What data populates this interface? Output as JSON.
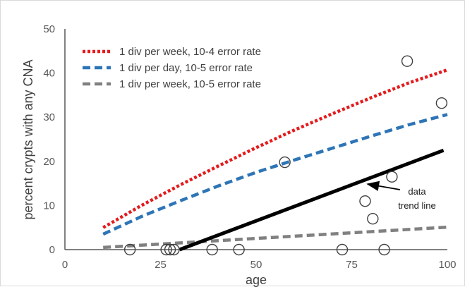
{
  "chart_data": {
    "type": "line",
    "title": "",
    "xlabel": "age",
    "ylabel": "percent crypts with any CNA",
    "xlim": [
      0,
      100
    ],
    "ylim": [
      0,
      50
    ],
    "xticks": [
      0,
      25,
      50,
      75,
      100
    ],
    "yticks": [
      0,
      10,
      20,
      30,
      40,
      50
    ],
    "grid": false,
    "legend_position": "top-left",
    "series": [
      {
        "name": "1 div per week, 10-4 error rate",
        "style": "dotted",
        "color": "#e41a1c",
        "x": [
          10,
          20,
          30,
          40,
          50,
          60,
          70,
          80,
          90,
          100
        ],
        "y": [
          5.0,
          10.0,
          14.6,
          18.9,
          23.1,
          27.1,
          30.8,
          34.4,
          37.8,
          40.7
        ]
      },
      {
        "name": "1 div per day, 10-5 error rate",
        "style": "dashed",
        "color": "#2e75b6",
        "x": [
          10,
          20,
          30,
          40,
          50,
          60,
          70,
          80,
          90,
          100
        ],
        "y": [
          3.5,
          7.5,
          11.0,
          14.4,
          17.5,
          20.3,
          23.0,
          25.7,
          28.3,
          30.6
        ]
      },
      {
        "name": "1 div per week, 10-5 error rate",
        "style": "dashed",
        "color": "#808080",
        "x": [
          10,
          100
        ],
        "y": [
          0.5,
          5.1
        ]
      },
      {
        "name": "",
        "style": "solid",
        "color": "#000000",
        "x": [
          30,
          99
        ],
        "y": [
          0,
          22.5
        ]
      }
    ],
    "scatter": {
      "marker": "open-circle",
      "color": "#404040",
      "points": [
        [
          17,
          0
        ],
        [
          26.5,
          0
        ],
        [
          27.5,
          0
        ],
        [
          28.5,
          0
        ],
        [
          38.5,
          0
        ],
        [
          45.5,
          0
        ],
        [
          57.5,
          19.8
        ],
        [
          72.5,
          0
        ],
        [
          78.5,
          11.0
        ],
        [
          80.5,
          7.0
        ],
        [
          83.5,
          0
        ],
        [
          85.5,
          16.5
        ],
        [
          89.5,
          42.7
        ],
        [
          98.5,
          33.2
        ]
      ]
    },
    "annotation": {
      "lines": [
        "data",
        "trend line"
      ],
      "arrow_target": [
        79,
        14.7
      ]
    }
  }
}
